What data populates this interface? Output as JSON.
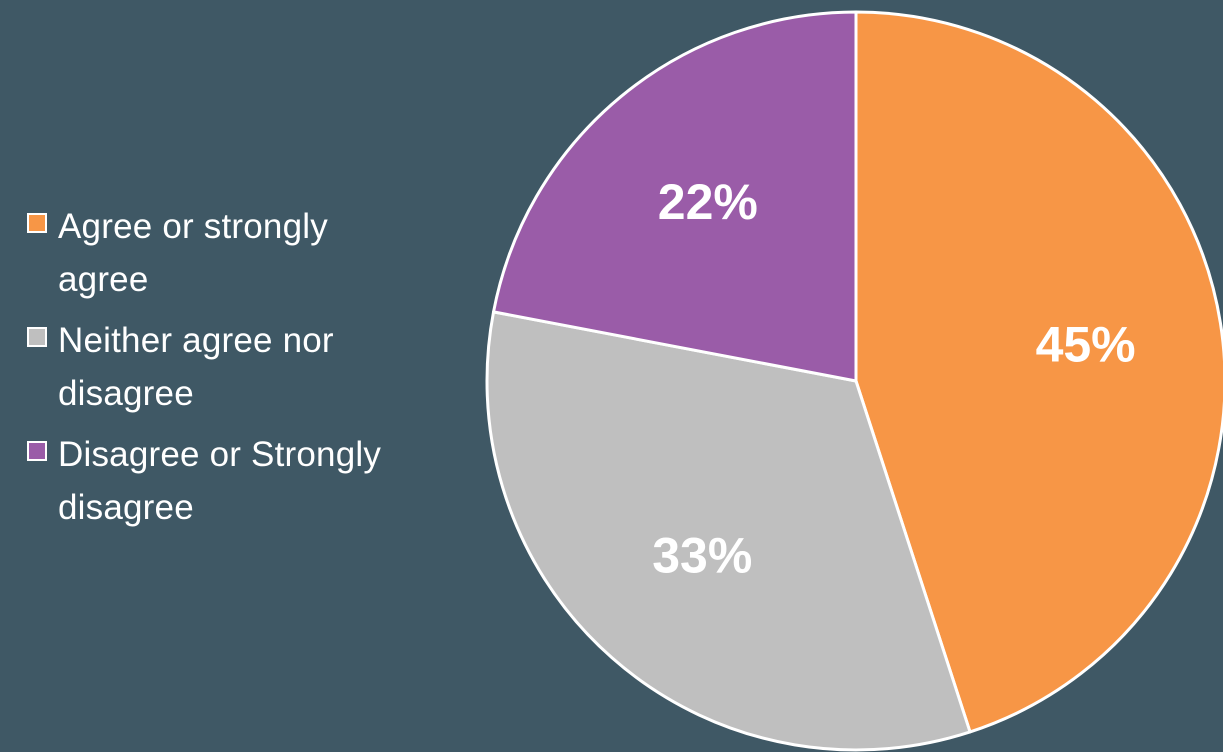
{
  "chart_data": {
    "type": "pie",
    "title": "",
    "categories": [
      "Agree or strongly agree",
      "Neither agree nor disagree",
      "Disagree or Strongly disagree"
    ],
    "values": [
      45,
      33,
      22
    ],
    "value_labels": [
      "45%",
      "33%",
      "22%"
    ],
    "colors": [
      "#f79646",
      "#bfbfbf",
      "#9a5ca8"
    ],
    "slice_border_color": "#ffffff",
    "start_angle": "12 o'clock",
    "direction": "clockwise",
    "legend_position": "left"
  },
  "legend": {
    "items": [
      {
        "label": "Agree or strongly agree",
        "color": "#f79646"
      },
      {
        "label": "Neither agree nor disagree",
        "color": "#bfbfbf"
      },
      {
        "label": "Disagree or Strongly disagree",
        "color": "#9a5ca8"
      }
    ]
  }
}
